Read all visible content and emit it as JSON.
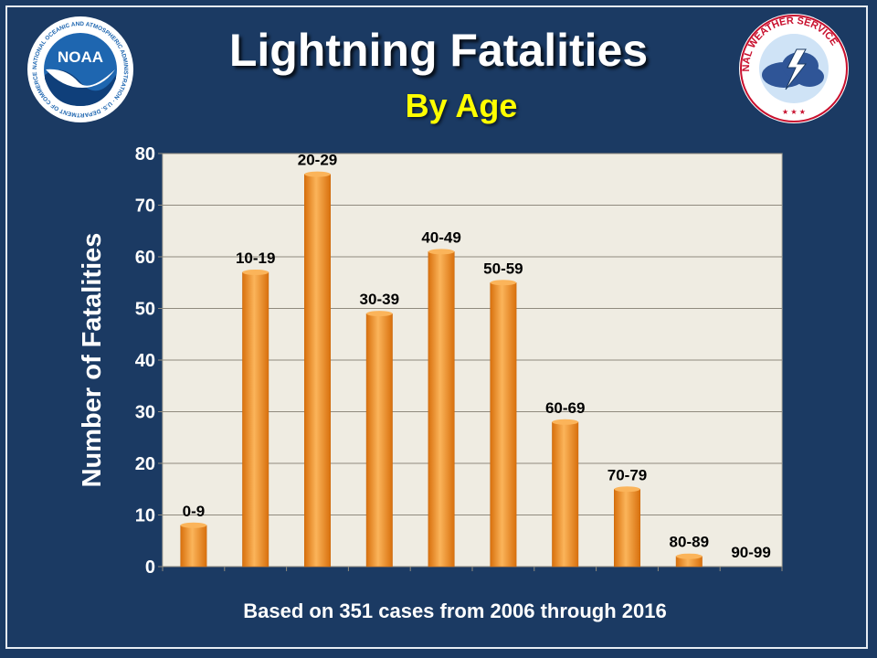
{
  "slide": {
    "title": "Lightning Fatalities",
    "subtitle": "By Age",
    "footer": "Based on 351 cases from 2006 through 2016"
  },
  "logos": {
    "noaa": {
      "center_text": "NOAA",
      "ring_text": "NATIONAL OCEANIC AND ATMOSPHERIC ADMINISTRATION · U.S. DEPARTMENT OF COMMERCE"
    },
    "nws": {
      "ring_text": "NATIONAL WEATHER SERVICE"
    }
  },
  "colors": {
    "background": "#1b3a63",
    "plot_area": "#efece2",
    "bar": "#f7941d",
    "bar_light": "#fbb45a",
    "bar_dark": "#d8700d",
    "title": "#ffffff",
    "subtitle": "#ffff00"
  },
  "chart_data": {
    "type": "bar",
    "categories": [
      "0-9",
      "10-19",
      "20-29",
      "30-39",
      "40-49",
      "50-59",
      "60-69",
      "70-79",
      "80-89",
      "90-99"
    ],
    "values": [
      8,
      57,
      76,
      49,
      61,
      55,
      28,
      15,
      2,
      0
    ],
    "title": "Lightning Fatalities",
    "subtitle": "By Age",
    "xlabel": "",
    "ylabel": "Number of Fatalities",
    "ylim": [
      0,
      80
    ],
    "yticks": [
      0,
      10,
      20,
      30,
      40,
      50,
      60,
      70,
      80
    ],
    "grid": true,
    "legend": "none",
    "data_labels": "category above bar"
  }
}
